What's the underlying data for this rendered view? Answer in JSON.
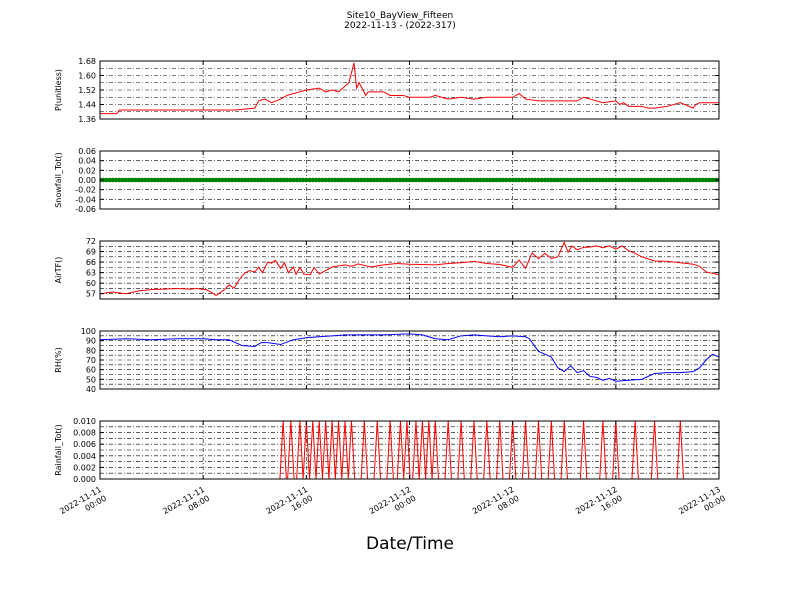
{
  "figure": {
    "title_line1": "Site10_BayView_Fifteen",
    "title_line2": "2022-11-13 - (2022-317)",
    "xlabel": "Date/Time"
  },
  "colors": {
    "red": "#ff0000",
    "green": "#008000",
    "blue": "#0000ff"
  },
  "chart_data": [
    {
      "type": "line",
      "ylabel": "P(unitless)",
      "ylim": [
        1.36,
        1.68
      ],
      "yticks": [
        "1.36",
        "1.44",
        "1.52",
        "1.60",
        "1.68"
      ],
      "minor_yticks": [
        1.4,
        1.48,
        1.56,
        1.64
      ],
      "xlim": [
        0,
        48
      ],
      "xtick_labels": [
        [
          "2022-11-11",
          "00:00"
        ],
        [
          "2022-11-11",
          "08:00"
        ],
        [
          "2022-11-11",
          "16:00"
        ],
        [
          "2022-11-12",
          "00:00"
        ],
        [
          "2022-11-12",
          "08:00"
        ],
        [
          "2022-11-12",
          "16:00"
        ],
        [
          "2022-11-13",
          "00:00"
        ]
      ],
      "xticks": [
        0,
        8,
        16,
        24,
        32,
        40,
        48
      ],
      "grid": true,
      "series": [
        {
          "color": "#ff0000",
          "x": [
            0,
            1.3,
            1.5,
            3,
            5,
            7,
            9,
            10.5,
            12,
            12.3,
            12.8,
            13.3,
            14,
            14.5,
            15,
            15.5,
            16,
            17,
            17.5,
            18,
            18.5,
            19.3,
            19.7,
            19.9,
            20.1,
            20.4,
            20.6,
            20.8,
            21.2,
            22,
            22.5,
            23,
            23.5,
            24,
            25,
            25.3,
            25.6,
            26,
            27,
            28,
            29,
            30,
            31,
            32,
            32.5,
            33,
            34,
            35,
            36,
            37,
            37.5,
            38,
            39,
            40,
            40.3,
            40.6,
            41,
            42,
            42.5,
            43,
            44,
            45,
            46,
            46.2,
            46.5,
            47,
            48
          ],
          "y": [
            1.39,
            1.39,
            1.41,
            1.41,
            1.41,
            1.41,
            1.41,
            1.41,
            1.42,
            1.46,
            1.47,
            1.45,
            1.47,
            1.49,
            1.5,
            1.51,
            1.52,
            1.53,
            1.51,
            1.52,
            1.51,
            1.56,
            1.67,
            1.53,
            1.56,
            1.52,
            1.49,
            1.51,
            1.51,
            1.51,
            1.49,
            1.49,
            1.49,
            1.48,
            1.48,
            1.48,
            1.48,
            1.49,
            1.47,
            1.48,
            1.47,
            1.48,
            1.48,
            1.48,
            1.5,
            1.47,
            1.46,
            1.46,
            1.46,
            1.46,
            1.48,
            1.47,
            1.45,
            1.46,
            1.44,
            1.45,
            1.43,
            1.43,
            1.42,
            1.42,
            1.43,
            1.45,
            1.42,
            1.44,
            1.45,
            1.45,
            1.45
          ]
        }
      ]
    },
    {
      "type": "scatter",
      "ylabel": "Snowfall_Tot()",
      "ylim": [
        -0.06,
        0.06
      ],
      "yticks": [
        "-0.06",
        "-0.04",
        "-0.02",
        "0.00",
        "0.02",
        "0.04",
        "0.06"
      ],
      "minor_yticks": [],
      "xlim": [
        0,
        48
      ],
      "xticks": [
        0,
        8,
        16,
        24,
        32,
        40,
        48
      ],
      "grid": true,
      "series": [
        {
          "color": "#008000",
          "constant": 0.0,
          "x_start": 0,
          "x_end": 48,
          "step": 0.25
        }
      ]
    },
    {
      "type": "line",
      "ylabel": "AirTF()",
      "ylim": [
        55.5,
        72
      ],
      "yticks": [
        "57",
        "60",
        "63",
        "66",
        "69",
        "72"
      ],
      "minor_yticks": [
        58.5,
        61.5,
        64.5,
        67.5,
        70.5
      ],
      "xlim": [
        0,
        48
      ],
      "xticks": [
        0,
        8,
        16,
        24,
        32,
        40,
        48
      ],
      "grid": true,
      "series": [
        {
          "color": "#ff0000",
          "x": [
            0,
            1,
            2,
            3,
            4,
            5,
            6,
            7,
            7.5,
            7.8,
            8.2,
            8.6,
            9,
            9.3,
            9.6,
            10,
            10.4,
            10.8,
            11.2,
            11.6,
            12,
            12.3,
            12.6,
            13,
            13.3,
            13.6,
            14,
            14.3,
            14.6,
            15,
            15.2,
            15.5,
            15.8,
            16,
            16.3,
            16.6,
            17,
            18,
            19,
            19.5,
            20,
            21,
            22,
            23,
            24,
            25,
            26,
            27,
            28,
            29,
            30,
            31,
            32,
            32.5,
            33,
            33.5,
            34,
            34.5,
            35,
            35.5,
            36,
            36.3,
            36.6,
            37,
            37.5,
            38,
            38.5,
            39,
            39.5,
            40,
            40.5,
            41,
            41.5,
            42,
            43,
            44,
            45,
            46,
            46.5,
            47,
            48
          ],
          "y": [
            57,
            57.5,
            57,
            57.8,
            58.2,
            58.3,
            58.5,
            58.3,
            58.5,
            58.3,
            58.2,
            57.5,
            56.5,
            57.3,
            58,
            59.5,
            58.6,
            61,
            62.8,
            63.6,
            63.2,
            64.5,
            63,
            66,
            65.7,
            66.5,
            64.2,
            65.8,
            63,
            64.6,
            62.5,
            64.5,
            62.6,
            62.5,
            62.4,
            64.5,
            62.6,
            64.6,
            65.2,
            64.8,
            65.5,
            64.6,
            65.2,
            65.6,
            65.4,
            65.3,
            65.2,
            65.6,
            65.8,
            66.2,
            65.6,
            65.3,
            64.5,
            66.6,
            64.2,
            68.6,
            67,
            68.5,
            67,
            67.5,
            71.6,
            68.8,
            70.6,
            69.5,
            70.2,
            70.3,
            70.6,
            70.1,
            70.6,
            69.7,
            70.6,
            69.2,
            68.5,
            67.5,
            66.3,
            66.2,
            65.8,
            65.4,
            64.8,
            63.2,
            62.4
          ]
        }
      ]
    },
    {
      "type": "line",
      "ylabel": "RH(%)",
      "ylim": [
        40,
        100
      ],
      "yticks": [
        "40",
        "50",
        "60",
        "70",
        "80",
        "90",
        "100"
      ],
      "minor_yticks": [
        45,
        55,
        65,
        75,
        85,
        95
      ],
      "xlim": [
        0,
        48
      ],
      "xticks": [
        0,
        8,
        16,
        24,
        32,
        40,
        48
      ],
      "grid": true,
      "series": [
        {
          "color": "#0000ff",
          "x": [
            0,
            2,
            4,
            6,
            8,
            9,
            10,
            11,
            12,
            12.5,
            13,
            14,
            15,
            16,
            17,
            18,
            19,
            20,
            22,
            24,
            25,
            26,
            27,
            28,
            29,
            30,
            31,
            32,
            33,
            33.3,
            34,
            34.5,
            35,
            35.5,
            36,
            36.5,
            37,
            37.5,
            38,
            38.5,
            39,
            39.5,
            40,
            41,
            42,
            43,
            44,
            45,
            46,
            46.5,
            47,
            47.5,
            48
          ],
          "y": [
            91,
            92,
            91,
            92,
            92,
            91,
            91,
            85,
            84,
            88,
            88,
            86,
            91,
            93,
            94,
            95,
            96,
            96,
            96,
            97,
            96,
            92,
            91,
            95,
            96,
            95,
            94,
            95,
            94,
            92,
            79,
            76,
            73,
            62,
            58,
            64,
            57,
            59,
            53,
            52,
            49,
            51,
            48,
            49,
            50,
            56,
            57,
            57,
            58,
            62,
            70,
            76,
            73
          ]
        }
      ]
    },
    {
      "type": "line",
      "ylabel": "Rainfall_Tot()",
      "ylim": [
        0.0,
        0.01
      ],
      "yticks": [
        "0.000",
        "0.002",
        "0.004",
        "0.006",
        "0.008",
        "0.010"
      ],
      "minor_yticks": [
        0.001,
        0.003,
        0.005,
        0.007,
        0.009
      ],
      "xlim": [
        0,
        48
      ],
      "xticks": [
        0,
        8,
        16,
        24,
        32,
        40,
        48
      ],
      "grid": true,
      "series": [
        {
          "color": "#ff0000",
          "baseline": 0.0,
          "peak": 0.01,
          "half_width": 0.25,
          "spikes": [
            14.2,
            14.8,
            15.5,
            16.0,
            16.5,
            17.0,
            17.5,
            18.0,
            18.5,
            19.0,
            19.5,
            20.5,
            21.5,
            22.5,
            23.3,
            23.8,
            24.5,
            25.0,
            25.5,
            26.0,
            27.0,
            28.0,
            29.0,
            30.0,
            31.0,
            32.0,
            33.0,
            34.0,
            35.0,
            36.0,
            37.5,
            39.0,
            40.0,
            41.5,
            43.0,
            45.0
          ]
        }
      ]
    }
  ]
}
